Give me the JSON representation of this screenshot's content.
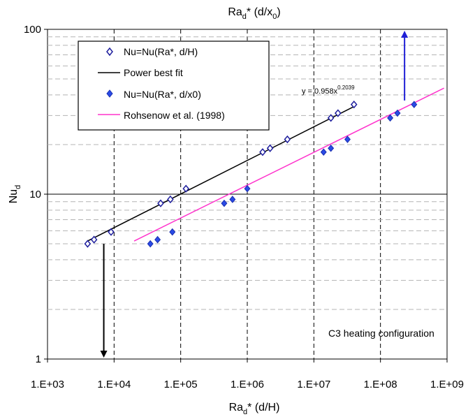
{
  "chart_data": {
    "type": "scatter",
    "x_scale": "log",
    "y_scale": "log",
    "xlim": [
      1000,
      1000000000
    ],
    "ylim": [
      1,
      100
    ],
    "x_tick_labels": [
      "1.E+03",
      "1.E+04",
      "1.E+05",
      "1.E+06",
      "1.E+07",
      "1.E+08",
      "1.E+09"
    ],
    "y_tick_labels": [
      "1",
      "10",
      "100"
    ],
    "xlabel_main": "Ra",
    "xlabel_sub": "d",
    "xlabel_rest": "* (d/H)",
    "top_label_main": "Ra",
    "top_label_sub": "d",
    "top_label_rest": "* (d/x",
    "top_label_sub2": "0",
    "top_label_end": ")",
    "ylabel_main": "Nu",
    "ylabel_sub": "d",
    "annotation": "C3 heating configuration",
    "equation": {
      "prefix": "y = 0.958x",
      "exponent": "0.2039"
    },
    "grid": "dashed major verticals; dashed minor horizontals; solid line at y=10",
    "legend_position": "top-left",
    "series": [
      {
        "name": "Nu=Nu(Ra*, d/H)",
        "marker": "open-diamond",
        "color": "#1f1f9e",
        "x": [
          4000,
          5000,
          9000,
          50000,
          70000,
          120000,
          1700000,
          2200000,
          4000000,
          18000000,
          23000000,
          40000000
        ],
        "y": [
          5.0,
          5.3,
          5.9,
          8.8,
          9.3,
          10.8,
          18.0,
          19.0,
          21.5,
          29.0,
          31.0,
          35.0
        ]
      },
      {
        "name": "Power best fit",
        "line": "solid",
        "color": "#000000",
        "fit": {
          "a": 0.958,
          "b": 0.2039
        },
        "x_range": [
          4000,
          40000000
        ]
      },
      {
        "name": "Nu=Nu(Ra*, d/x0)",
        "marker": "filled-diamond",
        "color": "#2a4be6",
        "x": [
          35000,
          45000,
          75000,
          450000,
          600000,
          1000000,
          14000000,
          18000000,
          32000000,
          140000000,
          180000000,
          320000000
        ],
        "y": [
          5.0,
          5.3,
          5.9,
          8.8,
          9.3,
          10.8,
          18.0,
          19.0,
          21.5,
          29.0,
          31.0,
          35.0
        ]
      },
      {
        "name": "Rohsenow et al. (1998)",
        "line": "solid",
        "color": "#ff33cc",
        "x": [
          20000,
          900000000
        ],
        "y": [
          5.2,
          44.0
        ]
      }
    ],
    "arrows": [
      {
        "color": "#000000",
        "x": 7000,
        "y_from": 5.0,
        "y_to": 1.0
      },
      {
        "color": "#1f1fd6",
        "x": 230000000,
        "y_from": 37,
        "y_to": 100
      }
    ]
  }
}
